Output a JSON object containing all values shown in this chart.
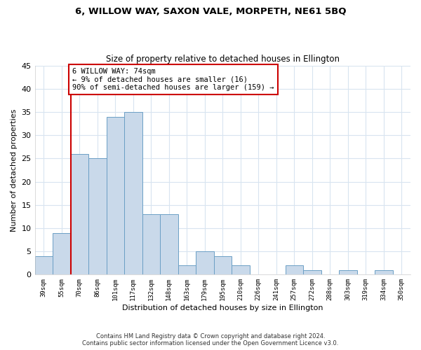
{
  "title": "6, WILLOW WAY, SAXON VALE, MORPETH, NE61 5BQ",
  "subtitle": "Size of property relative to detached houses in Ellington",
  "xlabel": "Distribution of detached houses by size in Ellington",
  "ylabel": "Number of detached properties",
  "categories": [
    "39sqm",
    "55sqm",
    "70sqm",
    "86sqm",
    "101sqm",
    "117sqm",
    "132sqm",
    "148sqm",
    "163sqm",
    "179sqm",
    "195sqm",
    "210sqm",
    "226sqm",
    "241sqm",
    "257sqm",
    "272sqm",
    "288sqm",
    "303sqm",
    "319sqm",
    "334sqm",
    "350sqm"
  ],
  "values": [
    4,
    9,
    26,
    25,
    34,
    35,
    13,
    13,
    2,
    5,
    4,
    2,
    0,
    0,
    2,
    1,
    0,
    1,
    0,
    1,
    0
  ],
  "bar_color": "#c9d9ea",
  "bar_edge_color": "#6b9fc5",
  "ylim": [
    0,
    45
  ],
  "yticks": [
    0,
    5,
    10,
    15,
    20,
    25,
    30,
    35,
    40,
    45
  ],
  "marker_line_index": 2,
  "marker_line_color": "#cc0000",
  "annotation_line1": "6 WILLOW WAY: 74sqm",
  "annotation_line2": "← 9% of detached houses are smaller (16)",
  "annotation_line3": "90% of semi-detached houses are larger (159) →",
  "annotation_box_color": "#ffffff",
  "annotation_box_edge_color": "#cc0000",
  "footer_line1": "Contains HM Land Registry data © Crown copyright and database right 2024.",
  "footer_line2": "Contains public sector information licensed under the Open Government Licence v3.0.",
  "background_color": "#ffffff",
  "grid_color": "#d8e4f0"
}
